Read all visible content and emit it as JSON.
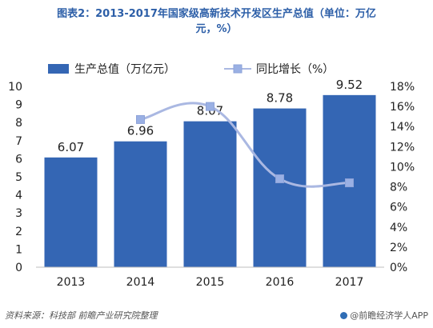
{
  "title": {
    "line1": "图表2：2013-2017年国家级高新技术开发区生产总值（单位：万亿",
    "line2": "元，%）"
  },
  "source": "资料来源：科技部 前瞻产业研究院整理",
  "brand": "@前瞻经济学人APP",
  "colors": {
    "bar": "#3466b4",
    "line": "#aab8e2",
    "marker": "#9ab0e4",
    "title": "#2d5fa8"
  },
  "chart_data": {
    "type": "bar",
    "categories": [
      "2013",
      "2014",
      "2015",
      "2016",
      "2017"
    ],
    "series": [
      {
        "name": "生产总值（万亿元）",
        "type": "bar",
        "axis": "left",
        "values": [
          6.07,
          6.96,
          8.07,
          8.78,
          9.52
        ],
        "labels": [
          "6.07",
          "6.96",
          "8.07",
          "8.78",
          "9.52"
        ]
      },
      {
        "name": "同比增长（%）",
        "type": "line",
        "axis": "right",
        "values": [
          null,
          14.7,
          16.0,
          8.8,
          8.4
        ]
      }
    ],
    "y_left": {
      "ylim": [
        0,
        10
      ],
      "ticks": [
        "0",
        "1",
        "2",
        "3",
        "4",
        "5",
        "6",
        "7",
        "8",
        "9",
        "10"
      ]
    },
    "y_right": {
      "ylim": [
        0,
        18
      ],
      "ticks": [
        "0%",
        "2%",
        "4%",
        "6%",
        "8%",
        "10%",
        "12%",
        "14%",
        "16%",
        "18%"
      ]
    },
    "legend": "top",
    "grid": false
  }
}
